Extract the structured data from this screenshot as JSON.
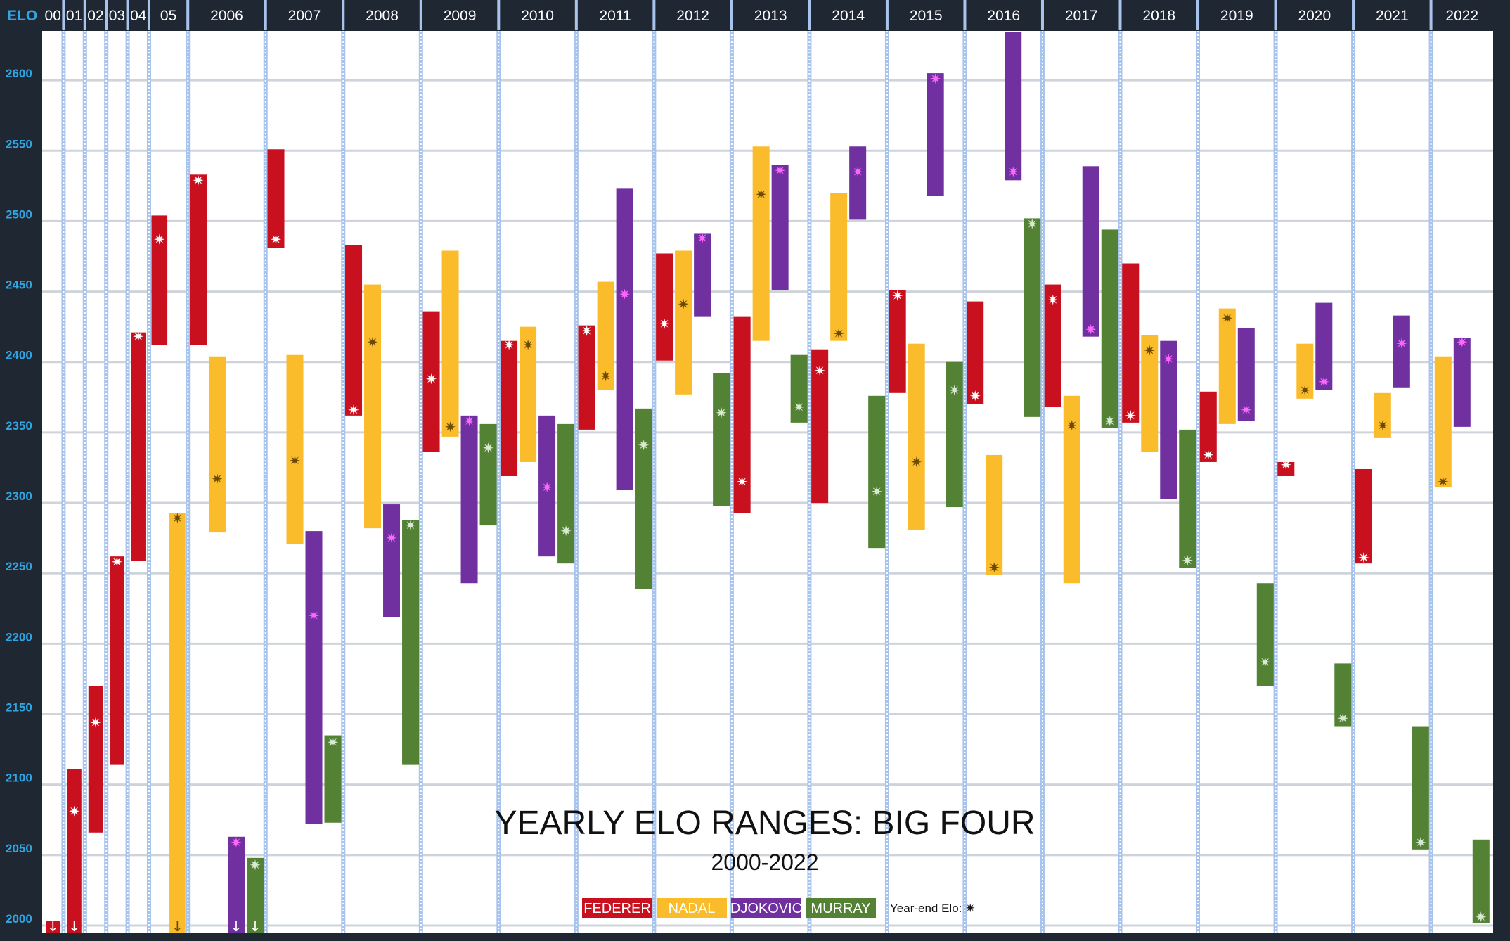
{
  "chart_data": {
    "type": "bar",
    "subtype": "floating-range",
    "title": "YEARLY ELO RANGES: BIG FOUR",
    "subtitle": "2000-2022",
    "ylabel": "ELO",
    "ylim": [
      1995,
      2635
    ],
    "yticks": [
      2000,
      2050,
      2100,
      2150,
      2200,
      2250,
      2300,
      2350,
      2400,
      2450,
      2500,
      2550,
      2600
    ],
    "grid": true,
    "legend_position": "bottom-center",
    "legend_note": "Year-end Elo:",
    "year_end_marker": "✷",
    "off_scale_marker": "↓",
    "periods": [
      {
        "label": "00",
        "weight": 0.55
      },
      {
        "label": "01",
        "weight": 0.55
      },
      {
        "label": "02",
        "weight": 0.55
      },
      {
        "label": "03",
        "weight": 0.55
      },
      {
        "label": "04",
        "weight": 0.55
      },
      {
        "label": "05",
        "weight": 1.0
      },
      {
        "label": "2006",
        "weight": 2.0
      },
      {
        "label": "2007",
        "weight": 2.0
      },
      {
        "label": "2008",
        "weight": 2.0
      },
      {
        "label": "2009",
        "weight": 2.0
      },
      {
        "label": "2010",
        "weight": 2.0
      },
      {
        "label": "2011",
        "weight": 2.0
      },
      {
        "label": "2012",
        "weight": 2.0
      },
      {
        "label": "2013",
        "weight": 2.0
      },
      {
        "label": "2014",
        "weight": 2.0
      },
      {
        "label": "2015",
        "weight": 2.0
      },
      {
        "label": "2016",
        "weight": 2.0
      },
      {
        "label": "2017",
        "weight": 2.0
      },
      {
        "label": "2018",
        "weight": 2.0
      },
      {
        "label": "2019",
        "weight": 2.0
      },
      {
        "label": "2020",
        "weight": 2.0
      },
      {
        "label": "2021",
        "weight": 2.0
      },
      {
        "label": "2022",
        "weight": 1.6
      }
    ],
    "series": [
      {
        "name": "FEDERER",
        "color": "#c8101e",
        "marker_color": "#ffffff"
      },
      {
        "name": "NADAL",
        "color": "#fbbc2c",
        "marker_color": "#6b4a00"
      },
      {
        "name": "DJOKOVIC",
        "color": "#7030a0",
        "marker_color": "#ff66ff"
      },
      {
        "name": "MURRAY",
        "color": "#548235",
        "marker_color": "#d9ead3"
      }
    ],
    "ranges": [
      {
        "period": "00",
        "player": "FEDERER",
        "low": 1995,
        "high": 2003,
        "year_end": null,
        "below_scale": true
      },
      {
        "period": "01",
        "player": "FEDERER",
        "low": 1995,
        "high": 2111,
        "year_end": 2081,
        "below_scale": true
      },
      {
        "period": "02",
        "player": "FEDERER",
        "low": 2066,
        "high": 2170,
        "year_end": 2144
      },
      {
        "period": "03",
        "player": "FEDERER",
        "low": 2114,
        "high": 2262,
        "year_end": 2258
      },
      {
        "period": "04",
        "player": "FEDERER",
        "low": 2259,
        "high": 2421,
        "year_end": 2418
      },
      {
        "period": "05",
        "player": "FEDERER",
        "low": 2412,
        "high": 2504,
        "year_end": 2487
      },
      {
        "period": "05",
        "player": "NADAL",
        "low": 1995,
        "high": 2293,
        "year_end": 2289,
        "below_scale": true
      },
      {
        "period": "2006",
        "player": "FEDERER",
        "low": 2412,
        "high": 2533,
        "year_end": 2529
      },
      {
        "period": "2006",
        "player": "NADAL",
        "low": 2279,
        "high": 2404,
        "year_end": 2317
      },
      {
        "period": "2006",
        "player": "DJOKOVIC",
        "low": 1995,
        "high": 2063,
        "year_end": 2059,
        "below_scale": true
      },
      {
        "period": "2006",
        "player": "MURRAY",
        "low": 1995,
        "high": 2048,
        "year_end": 2043,
        "below_scale": true
      },
      {
        "period": "2007",
        "player": "FEDERER",
        "low": 2481,
        "high": 2551,
        "year_end": 2487
      },
      {
        "period": "2007",
        "player": "NADAL",
        "low": 2271,
        "high": 2405,
        "year_end": 2330
      },
      {
        "period": "2007",
        "player": "DJOKOVIC",
        "low": 2072,
        "high": 2280,
        "year_end": 2220
      },
      {
        "period": "2007",
        "player": "MURRAY",
        "low": 2073,
        "high": 2135,
        "year_end": 2130
      },
      {
        "period": "2008",
        "player": "FEDERER",
        "low": 2362,
        "high": 2483,
        "year_end": 2366
      },
      {
        "period": "2008",
        "player": "NADAL",
        "low": 2282,
        "high": 2455,
        "year_end": 2414
      },
      {
        "period": "2008",
        "player": "DJOKOVIC",
        "low": 2219,
        "high": 2299,
        "year_end": 2275
      },
      {
        "period": "2008",
        "player": "MURRAY",
        "low": 2114,
        "high": 2288,
        "year_end": 2284
      },
      {
        "period": "2009",
        "player": "FEDERER",
        "low": 2336,
        "high": 2436,
        "year_end": 2388
      },
      {
        "period": "2009",
        "player": "NADAL",
        "low": 2347,
        "high": 2479,
        "year_end": 2354
      },
      {
        "period": "2009",
        "player": "DJOKOVIC",
        "low": 2243,
        "high": 2362,
        "year_end": 2358
      },
      {
        "period": "2009",
        "player": "MURRAY",
        "low": 2284,
        "high": 2356,
        "year_end": 2339
      },
      {
        "period": "2010",
        "player": "FEDERER",
        "low": 2319,
        "high": 2415,
        "year_end": 2412
      },
      {
        "period": "2010",
        "player": "NADAL",
        "low": 2329,
        "high": 2425,
        "year_end": 2412
      },
      {
        "period": "2010",
        "player": "DJOKOVIC",
        "low": 2262,
        "high": 2362,
        "year_end": 2311
      },
      {
        "period": "2010",
        "player": "MURRAY",
        "low": 2257,
        "high": 2356,
        "year_end": 2280
      },
      {
        "period": "2011",
        "player": "FEDERER",
        "low": 2352,
        "high": 2426,
        "year_end": 2422
      },
      {
        "period": "2011",
        "player": "NADAL",
        "low": 2380,
        "high": 2457,
        "year_end": 2390
      },
      {
        "period": "2011",
        "player": "DJOKOVIC",
        "low": 2309,
        "high": 2523,
        "year_end": 2448
      },
      {
        "period": "2011",
        "player": "MURRAY",
        "low": 2239,
        "high": 2367,
        "year_end": 2341
      },
      {
        "period": "2012",
        "player": "FEDERER",
        "low": 2401,
        "high": 2477,
        "year_end": 2427
      },
      {
        "period": "2012",
        "player": "NADAL",
        "low": 2377,
        "high": 2479,
        "year_end": 2441
      },
      {
        "period": "2012",
        "player": "DJOKOVIC",
        "low": 2432,
        "high": 2491,
        "year_end": 2488
      },
      {
        "period": "2012",
        "player": "MURRAY",
        "low": 2298,
        "high": 2392,
        "year_end": 2364
      },
      {
        "period": "2013",
        "player": "FEDERER",
        "low": 2293,
        "high": 2432,
        "year_end": 2315
      },
      {
        "period": "2013",
        "player": "NADAL",
        "low": 2415,
        "high": 2553,
        "year_end": 2519
      },
      {
        "period": "2013",
        "player": "DJOKOVIC",
        "low": 2451,
        "high": 2540,
        "year_end": 2536
      },
      {
        "period": "2013",
        "player": "MURRAY",
        "low": 2357,
        "high": 2405,
        "year_end": 2368
      },
      {
        "period": "2014",
        "player": "FEDERER",
        "low": 2300,
        "high": 2409,
        "year_end": 2394
      },
      {
        "period": "2014",
        "player": "NADAL",
        "low": 2415,
        "high": 2520,
        "year_end": 2420
      },
      {
        "period": "2014",
        "player": "DJOKOVIC",
        "low": 2501,
        "high": 2553,
        "year_end": 2535
      },
      {
        "period": "2014",
        "player": "MURRAY",
        "low": 2268,
        "high": 2376,
        "year_end": 2308
      },
      {
        "period": "2015",
        "player": "FEDERER",
        "low": 2378,
        "high": 2451,
        "year_end": 2447
      },
      {
        "period": "2015",
        "player": "NADAL",
        "low": 2281,
        "high": 2413,
        "year_end": 2329
      },
      {
        "period": "2015",
        "player": "DJOKOVIC",
        "low": 2518,
        "high": 2605,
        "year_end": 2601
      },
      {
        "period": "2015",
        "player": "MURRAY",
        "low": 2297,
        "high": 2400,
        "year_end": 2380
      },
      {
        "period": "2016",
        "player": "FEDERER",
        "low": 2370,
        "high": 2443,
        "year_end": 2376
      },
      {
        "period": "2016",
        "player": "NADAL",
        "low": 2249,
        "high": 2334,
        "year_end": 2254
      },
      {
        "period": "2016",
        "player": "DJOKOVIC",
        "low": 2529,
        "high": 2634,
        "year_end": 2535
      },
      {
        "period": "2016",
        "player": "MURRAY",
        "low": 2361,
        "high": 2502,
        "year_end": 2498
      },
      {
        "period": "2017",
        "player": "FEDERER",
        "low": 2368,
        "high": 2455,
        "year_end": 2444
      },
      {
        "period": "2017",
        "player": "NADAL",
        "low": 2243,
        "high": 2376,
        "year_end": 2355
      },
      {
        "period": "2017",
        "player": "DJOKOVIC",
        "low": 2418,
        "high": 2539,
        "year_end": 2423
      },
      {
        "period": "2017",
        "player": "MURRAY",
        "low": 2353,
        "high": 2494,
        "year_end": 2358
      },
      {
        "period": "2018",
        "player": "FEDERER",
        "low": 2357,
        "high": 2470,
        "year_end": 2362
      },
      {
        "period": "2018",
        "player": "NADAL",
        "low": 2336,
        "high": 2419,
        "year_end": 2408
      },
      {
        "period": "2018",
        "player": "DJOKOVIC",
        "low": 2303,
        "high": 2415,
        "year_end": 2402
      },
      {
        "period": "2018",
        "player": "MURRAY",
        "low": 2254,
        "high": 2352,
        "year_end": 2259
      },
      {
        "period": "2019",
        "player": "FEDERER",
        "low": 2329,
        "high": 2379,
        "year_end": 2334
      },
      {
        "period": "2019",
        "player": "NADAL",
        "low": 2356,
        "high": 2438,
        "year_end": 2431
      },
      {
        "period": "2019",
        "player": "DJOKOVIC",
        "low": 2358,
        "high": 2424,
        "year_end": 2366
      },
      {
        "period": "2019",
        "player": "MURRAY",
        "low": 2170,
        "high": 2243,
        "year_end": 2187
      },
      {
        "period": "2020",
        "player": "FEDERER",
        "low": 2319,
        "high": 2329,
        "year_end": 2327
      },
      {
        "period": "2020",
        "player": "NADAL",
        "low": 2374,
        "high": 2413,
        "year_end": 2380
      },
      {
        "period": "2020",
        "player": "DJOKOVIC",
        "low": 2380,
        "high": 2442,
        "year_end": 2386
      },
      {
        "period": "2020",
        "player": "MURRAY",
        "low": 2141,
        "high": 2186,
        "year_end": 2147
      },
      {
        "period": "2021",
        "player": "FEDERER",
        "low": 2257,
        "high": 2324,
        "year_end": 2261
      },
      {
        "period": "2021",
        "player": "NADAL",
        "low": 2346,
        "high": 2378,
        "year_end": 2355
      },
      {
        "period": "2021",
        "player": "DJOKOVIC",
        "low": 2382,
        "high": 2433,
        "year_end": 2413
      },
      {
        "period": "2021",
        "player": "MURRAY",
        "low": 2054,
        "high": 2141,
        "year_end": 2059
      },
      {
        "period": "2022",
        "player": "NADAL",
        "low": 2311,
        "high": 2404,
        "year_end": 2315
      },
      {
        "period": "2022",
        "player": "DJOKOVIC",
        "low": 2354,
        "high": 2417,
        "year_end": 2414
      },
      {
        "period": "2022",
        "player": "MURRAY",
        "low": 2002,
        "high": 2061,
        "year_end": 2006
      }
    ]
  }
}
